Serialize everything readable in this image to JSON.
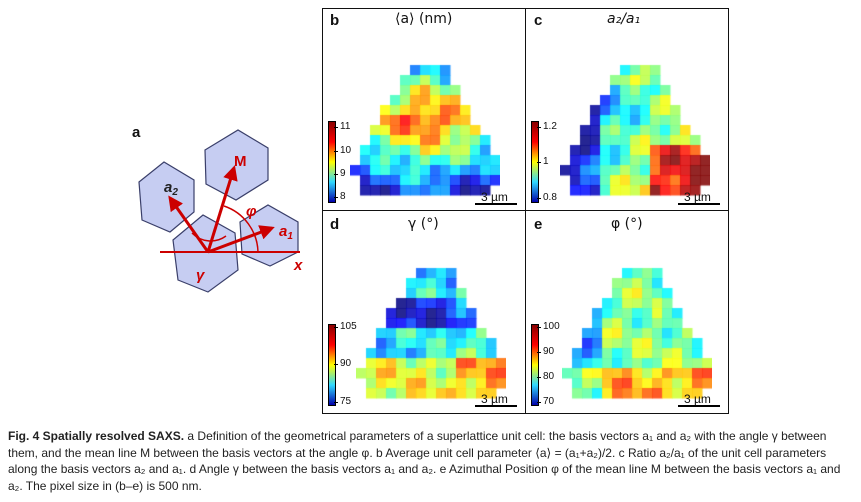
{
  "panel_a": {
    "letter": "a",
    "labels": {
      "a2": "a",
      "a2_sub": "2",
      "M": "M",
      "phi": "φ",
      "a1": "a",
      "a1_sub": "1",
      "x": "x",
      "gamma": "γ"
    },
    "colors": {
      "cell_fill": "#c6cdf2",
      "cell_edge": "#7b84b8",
      "arrow": "#cc0000"
    }
  },
  "panels": [
    {
      "letter": "b",
      "title": "⟨a⟩ (nm)",
      "scalebar": "3 µm",
      "ticks": [
        "11",
        "10",
        "9",
        "8"
      ],
      "map": "b"
    },
    {
      "letter": "c",
      "title": "a₂/a₁",
      "scalebar": "3 µm",
      "ticks": [
        "1.2",
        "1",
        "0.8"
      ],
      "map": "c"
    },
    {
      "letter": "d",
      "title": "γ (°)",
      "scalebar": "3 µm",
      "ticks": [
        "105",
        "90",
        "75"
      ],
      "map": "d"
    },
    {
      "letter": "e",
      "title": "φ (°)",
      "scalebar": "3 µm",
      "ticks": [
        "100",
        "90",
        "80",
        "70"
      ],
      "map": "e"
    }
  ],
  "caption": {
    "heading": "Fig. 4 Spatially resolved SAXS.",
    "text": " a Definition of the geometrical parameters of a superlattice unit cell: the basis vectors a₁ and a₂ with the angle γ between them, and the mean line M between the basis vectors at the angle φ. b Average unit cell parameter ⟨a⟩ = (a₁+a₂)/2. c Ratio a₂/a₁ of the unit cell parameters along the basis vectors a₂ and a₁. d Angle γ between the basis vectors a₁ and a₂. e Azimuthal Position φ of the mean line M between the basis vectors a₁ and a₂. The pixel size in (b–e) is 500 nm."
  }
}
